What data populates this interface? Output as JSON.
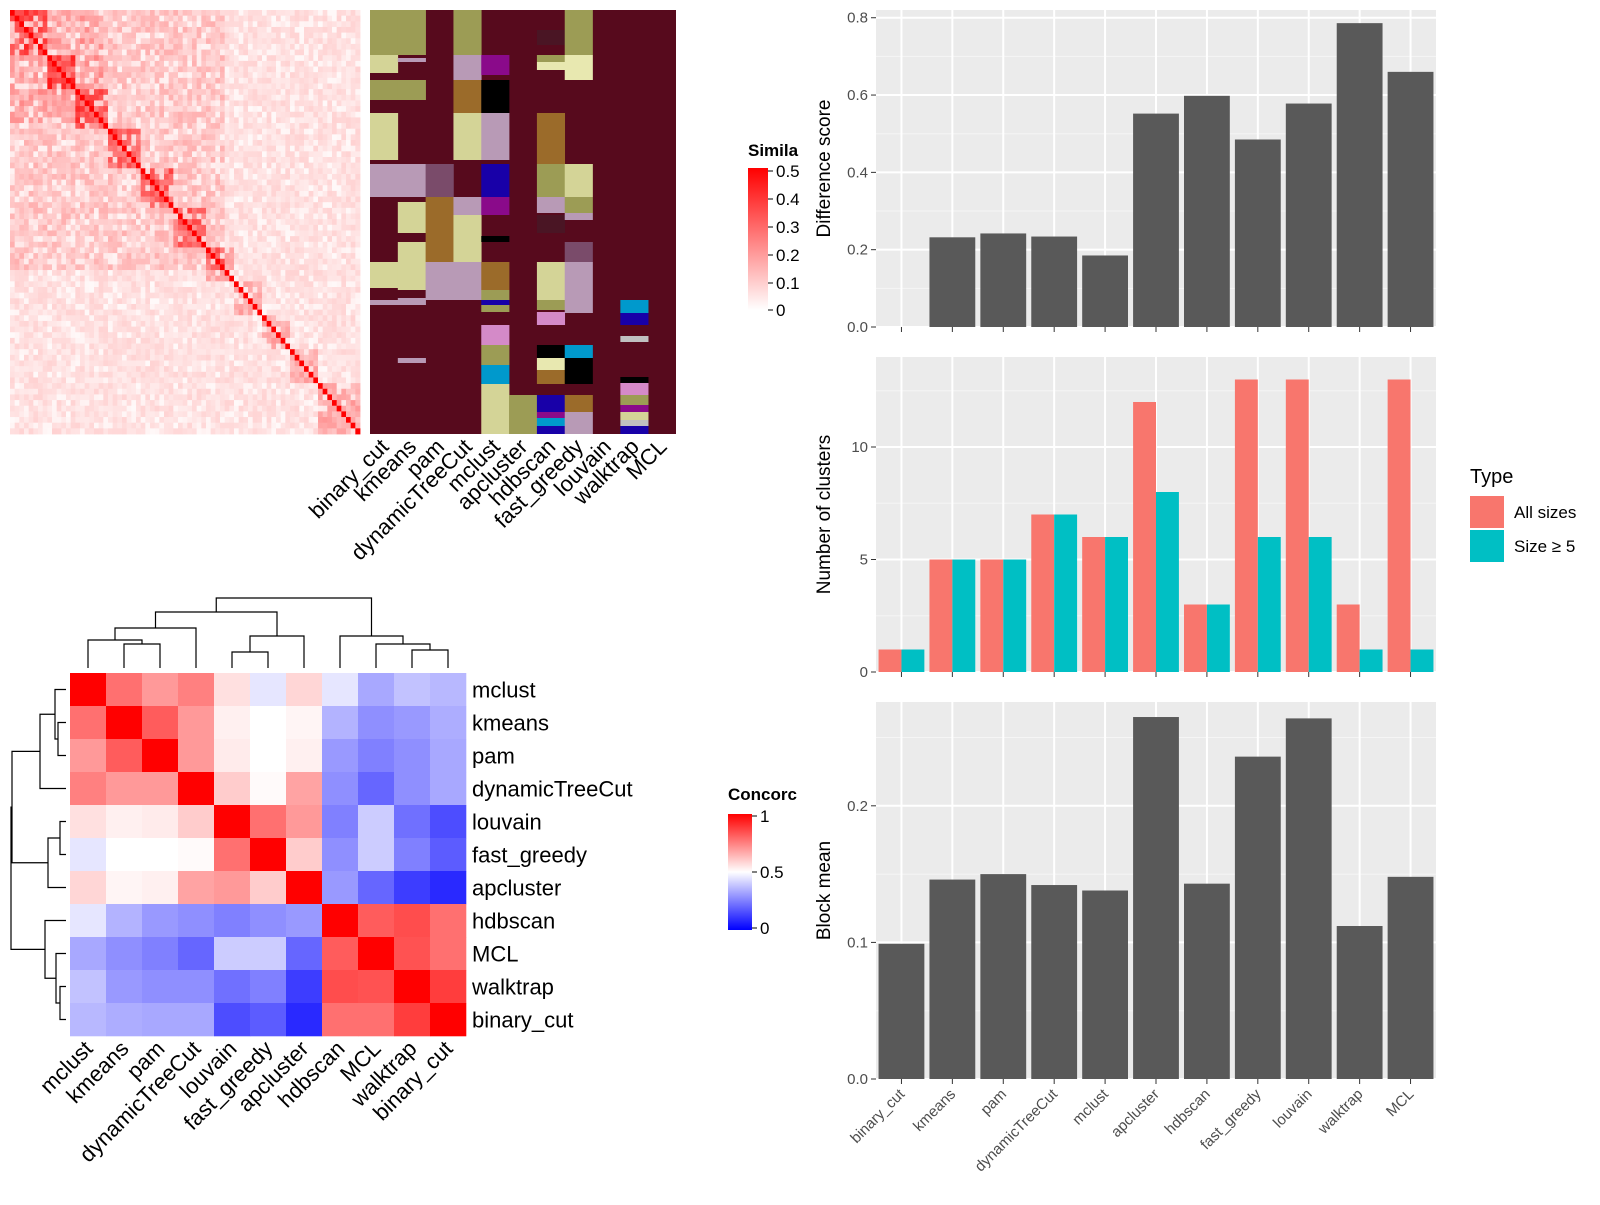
{
  "similarity_legend": {
    "title": "Simila",
    "ticks": [
      "0.5",
      "0.4",
      "0.3",
      "0.2",
      "0.1",
      "0"
    ]
  },
  "concordance_legend": {
    "title": "Concorc",
    "ticks": [
      "1",
      "0.5",
      "0"
    ]
  },
  "colors": {
    "bar": "#595959",
    "panel_bg": "#ebebeb",
    "all_sizes": "#f8766d",
    "size_ge5": "#00bfc4",
    "membership_bg": "#570a1d"
  },
  "chart_data": [
    {
      "type": "heatmap",
      "name": "similarity-heatmap",
      "description_values": "term similarity matrix, diagonal of ones clipped at 0.5",
      "legend_title": "Simila",
      "color_range": [
        0,
        0.5
      ],
      "n": 75
    },
    {
      "type": "heatmap",
      "name": "membership-heatmap",
      "columns": [
        "binary_cut",
        "kmeans",
        "pam",
        "dynamicTreeCut",
        "mclust",
        "apcluster",
        "hdbscan",
        "fast_greedy",
        "louvain",
        "walktrap",
        "MCL"
      ]
    },
    {
      "type": "heatmap",
      "name": "concordance-heatmap",
      "legend_title": "Concorc",
      "color_range": [
        0,
        1
      ],
      "row_labels": [
        "mclust",
        "kmeans",
        "pam",
        "dynamicTreeCut",
        "louvain",
        "fast_greedy",
        "apcluster",
        "hdbscan",
        "MCL",
        "walktrap",
        "binary_cut"
      ],
      "col_labels": [
        "mclust",
        "kmeans",
        "pam",
        "dynamicTreeCut",
        "louvain",
        "fast_greedy",
        "apcluster",
        "hdbscan",
        "MCL",
        "walktrap",
        "binary_cut"
      ],
      "values": [
        [
          1.0,
          0.78,
          0.7,
          0.75,
          0.56,
          0.45,
          0.58,
          0.45,
          0.33,
          0.38,
          0.36
        ],
        [
          0.78,
          1.0,
          0.82,
          0.7,
          0.53,
          0.5,
          0.52,
          0.35,
          0.28,
          0.3,
          0.34
        ],
        [
          0.7,
          0.82,
          1.0,
          0.7,
          0.54,
          0.5,
          0.53,
          0.3,
          0.25,
          0.28,
          0.33
        ],
        [
          0.75,
          0.7,
          0.7,
          1.0,
          0.6,
          0.51,
          0.68,
          0.28,
          0.2,
          0.28,
          0.33
        ],
        [
          0.56,
          0.53,
          0.54,
          0.6,
          1.0,
          0.78,
          0.7,
          0.25,
          0.4,
          0.22,
          0.15
        ],
        [
          0.45,
          0.5,
          0.5,
          0.51,
          0.78,
          1.0,
          0.6,
          0.28,
          0.4,
          0.25,
          0.18
        ],
        [
          0.58,
          0.52,
          0.53,
          0.68,
          0.7,
          0.6,
          1.0,
          0.3,
          0.2,
          0.12,
          0.08
        ],
        [
          0.45,
          0.35,
          0.3,
          0.28,
          0.25,
          0.28,
          0.3,
          1.0,
          0.82,
          0.85,
          0.78
        ],
        [
          0.33,
          0.28,
          0.25,
          0.2,
          0.4,
          0.4,
          0.2,
          0.82,
          1.0,
          0.84,
          0.78
        ],
        [
          0.38,
          0.3,
          0.28,
          0.28,
          0.22,
          0.25,
          0.12,
          0.85,
          0.84,
          1.0,
          0.88
        ],
        [
          0.36,
          0.34,
          0.33,
          0.33,
          0.15,
          0.18,
          0.08,
          0.78,
          0.78,
          0.88,
          1.0
        ]
      ]
    },
    {
      "type": "bar",
      "name": "difference-score",
      "ylabel": "Difference score",
      "categories": [
        "binary_cut",
        "kmeans",
        "pam",
        "dynamicTreeCut",
        "mclust",
        "apcluster",
        "hdbscan",
        "fast_greedy",
        "louvain",
        "walktrap",
        "MCL"
      ],
      "values": [
        0.0,
        0.232,
        0.242,
        0.234,
        0.185,
        0.552,
        0.598,
        0.485,
        0.578,
        0.786,
        0.66
      ],
      "ylim": [
        0,
        0.82
      ],
      "yticks": [
        0.0,
        0.2,
        0.4,
        0.6,
        0.8
      ],
      "ytick_labels": [
        "0.0",
        "0.2",
        "0.4",
        "0.6",
        "0.8"
      ],
      "grid": true
    },
    {
      "type": "bar",
      "name": "number-of-clusters",
      "ylabel": "Number of clusters",
      "categories": [
        "binary_cut",
        "kmeans",
        "pam",
        "dynamicTreeCut",
        "mclust",
        "apcluster",
        "hdbscan",
        "fast_greedy",
        "louvain",
        "walktrap",
        "MCL"
      ],
      "series": [
        {
          "name": "All sizes",
          "values": [
            1,
            5,
            5,
            7,
            6,
            12,
            3,
            13,
            13,
            3,
            13
          ]
        },
        {
          "name": "Size ≥ 5",
          "values": [
            1,
            5,
            5,
            7,
            6,
            8,
            3,
            6,
            6,
            1,
            1
          ]
        }
      ],
      "ylim": [
        0,
        14
      ],
      "yticks": [
        0,
        5,
        10
      ],
      "ytick_labels": [
        "0",
        "5",
        "10"
      ],
      "legend": {
        "title": "Type",
        "position": "right"
      },
      "grid": true
    },
    {
      "type": "bar",
      "name": "block-mean",
      "ylabel": "Block mean",
      "categories": [
        "binary_cut",
        "kmeans",
        "pam",
        "dynamicTreeCut",
        "mclust",
        "apcluster",
        "hdbscan",
        "fast_greedy",
        "louvain",
        "walktrap",
        "MCL"
      ],
      "values": [
        0.099,
        0.146,
        0.15,
        0.142,
        0.138,
        0.265,
        0.143,
        0.236,
        0.264,
        0.112,
        0.148
      ],
      "ylim": [
        0,
        0.276
      ],
      "yticks": [
        0.0,
        0.1,
        0.2
      ],
      "ytick_labels": [
        "0.0",
        "0.1",
        "0.2"
      ],
      "grid": true
    }
  ]
}
